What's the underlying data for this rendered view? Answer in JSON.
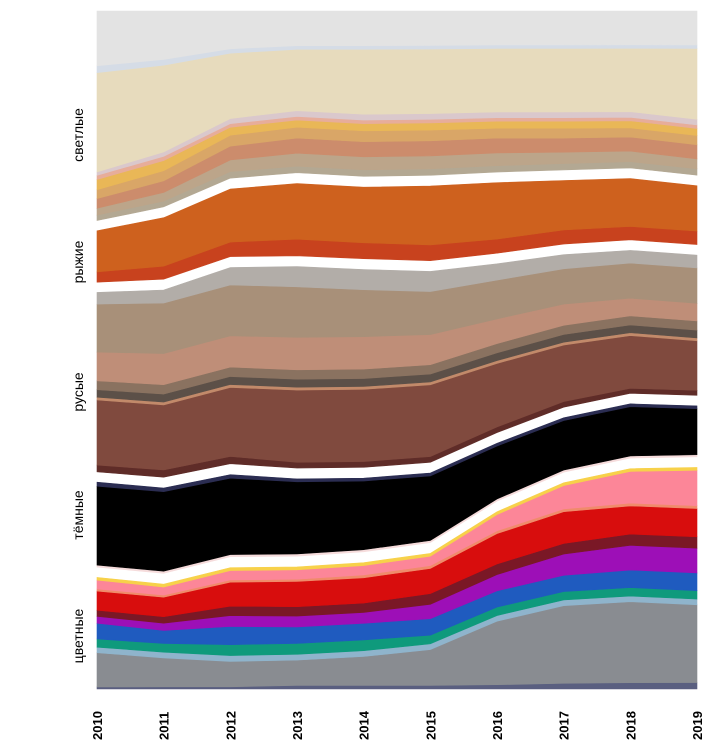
{
  "chart_data": {
    "type": "area",
    "subtype": "stacked-streamgraph",
    "title": "",
    "xlabel": "",
    "ylabel": "",
    "x": [
      "2010",
      "2011",
      "2012",
      "2013",
      "2014",
      "2015",
      "2016",
      "2017",
      "2018",
      "2019"
    ],
    "ylim": [
      0,
      100
    ],
    "grid": false,
    "legend": "none",
    "groups": [
      {
        "name": "цветные",
        "series": [
          {
            "color": "#5a5f80",
            "values": [
              0.3,
              0.3,
              0.3,
              0.5,
              0.5,
              0.5,
              0.6,
              0.8,
              0.9,
              0.9
            ]
          },
          {
            "color": "#898c91",
            "values": [
              5.0,
              4.0,
              3.5,
              3.5,
              4.0,
              5.0,
              9.0,
              11.0,
              11.5,
              11.0
            ]
          },
          {
            "color": "#8fb4cc",
            "values": [
              0.8,
              0.8,
              0.8,
              0.8,
              0.8,
              0.8,
              0.8,
              0.8,
              0.8,
              0.8
            ]
          },
          {
            "color": "#0f9a7c",
            "values": [
              1.2,
              1.2,
              1.5,
              1.5,
              1.5,
              1.2,
              1.2,
              1.2,
              1.2,
              1.2
            ]
          },
          {
            "color": "#1f5bbf",
            "values": [
              2.3,
              1.8,
              2.5,
              2.3,
              2.3,
              2.3,
              2.3,
              2.3,
              2.5,
              2.5
            ]
          },
          {
            "color": "#9d0fb7",
            "values": [
              1.0,
              1.0,
              1.5,
              1.5,
              1.5,
              2.0,
              2.3,
              3.0,
              3.5,
              3.5
            ]
          },
          {
            "color": "#7a1826",
            "values": [
              0.9,
              0.9,
              1.3,
              1.3,
              1.3,
              1.5,
              1.5,
              1.5,
              1.6,
              1.6
            ]
          },
          {
            "color": "#d80d0d",
            "values": [
              2.8,
              2.7,
              3.3,
              3.5,
              3.5,
              3.5,
              4.3,
              4.5,
              4.0,
              4.0
            ]
          },
          {
            "color": "#f08b6b",
            "values": [
              0.3,
              0.3,
              0.3,
              0.3,
              0.4,
              0.4,
              0.4,
              0.4,
              0.4,
              0.4
            ]
          },
          {
            "color": "#fc8698",
            "values": [
              1.3,
              1.1,
              1.3,
              1.3,
              1.3,
              1.3,
              2.3,
              3.3,
              4.5,
              5.0
            ]
          },
          {
            "color": "#f7d14a",
            "values": [
              0.4,
              0.4,
              0.4,
              0.4,
              0.4,
              0.4,
              0.4,
              0.4,
              0.4,
              0.4
            ]
          }
        ]
      },
      {
        "name": "тёмные",
        "series": [
          {
            "color": "#f6dcdc",
            "values": [
              0.3,
              0.3,
              0.3,
              0.3,
              0.3,
              0.3,
              0.3,
              0.3,
              0.3,
              0.3
            ]
          },
          {
            "color": "#000000",
            "values": [
              11.5,
              11.0,
              10.5,
              10.0,
              9.5,
              9.0,
              7.5,
              7.0,
              7.0,
              6.5
            ]
          },
          {
            "color": "#2b2d52",
            "values": [
              0.6,
              0.5,
              0.5,
              0.4,
              0.4,
              0.4,
              0.4,
              0.4,
              0.4,
              0.4
            ]
          }
        ]
      },
      {
        "name": "русые",
        "series": [
          {
            "color": "#5f2c28",
            "values": [
              1.0,
              1.0,
              1.0,
              0.8,
              0.8,
              0.8,
              0.8,
              0.8,
              0.7,
              0.7
            ]
          },
          {
            "color": "#804a3e",
            "values": [
              9.5,
              9.0,
              9.5,
              10.0,
              10.0,
              10.0,
              9.0,
              8.0,
              7.5,
              7.0
            ]
          },
          {
            "color": "#c28a6a",
            "values": [
              0.4,
              0.4,
              0.4,
              0.4,
              0.4,
              0.4,
              0.4,
              0.4,
              0.4,
              0.4
            ]
          },
          {
            "color": "#5c5048",
            "values": [
              1.1,
              1.1,
              1.1,
              1.1,
              1.1,
              1.1,
              1.1,
              1.1,
              1.1,
              1.1
            ]
          },
          {
            "color": "#8a7260",
            "values": [
              1.3,
              1.3,
              1.3,
              1.3,
              1.3,
              1.3,
              1.3,
              1.3,
              1.3,
              1.3
            ]
          },
          {
            "color": "#bf8e78",
            "values": [
              4.2,
              4.3,
              4.3,
              4.5,
              4.5,
              4.2,
              3.5,
              3.0,
              2.5,
              2.5
            ]
          },
          {
            "color": "#a89079",
            "values": [
              7.0,
              7.0,
              7.0,
              7.0,
              6.5,
              6.0,
              5.5,
              5.0,
              5.0,
              5.0
            ]
          },
          {
            "color": "#b2ada8",
            "values": [
              1.7,
              1.8,
              2.4,
              2.8,
              2.8,
              2.8,
              2.3,
              2.0,
              1.8,
              1.8
            ]
          }
        ]
      },
      {
        "name": "рыжие",
        "series": [
          {
            "color": "#c8421e",
            "values": [
              1.5,
              1.8,
              2.0,
              2.3,
              2.2,
              2.2,
              2.0,
              2.0,
              1.9,
              1.9
            ]
          },
          {
            "color": "#ce611e",
            "values": [
              6.0,
              6.7,
              7.3,
              7.7,
              7.7,
              8.2,
              8.0,
              7.0,
              6.8,
              6.4
            ]
          }
        ]
      },
      {
        "name": "светлые",
        "series": [
          {
            "color": "#b3a893",
            "values": [
              0.8,
              0.8,
              0.9,
              0.9,
              0.9,
              0.9,
              0.9,
              0.9,
              0.9,
              0.9
            ]
          },
          {
            "color": "#bca58a",
            "values": [
              1.0,
              1.2,
              1.6,
              1.8,
              1.8,
              1.8,
              1.8,
              1.6,
              1.5,
              1.4
            ]
          },
          {
            "color": "#cc8c6c",
            "values": [
              1.4,
              1.6,
              1.9,
              2.1,
              2.1,
              2.1,
              2.1,
              2.0,
              2.0,
              2.0
            ]
          },
          {
            "color": "#d9a667",
            "values": [
              1.3,
              1.4,
              1.5,
              1.5,
              1.5,
              1.5,
              1.4,
              1.4,
              1.3,
              1.3
            ]
          },
          {
            "color": "#e9b757",
            "values": [
              1.5,
              1.4,
              1.1,
              1.0,
              1.0,
              1.0,
              1.0,
              1.0,
              1.0,
              1.0
            ]
          },
          {
            "color": "#e7ad9a",
            "values": [
              0.6,
              0.6,
              0.5,
              0.5,
              0.5,
              0.5,
              0.5,
              0.5,
              0.5,
              0.5
            ]
          },
          {
            "color": "#dac8cc",
            "values": [
              0.5,
              0.6,
              0.7,
              0.8,
              0.8,
              0.8,
              0.8,
              0.8,
              0.8,
              0.8
            ]
          },
          {
            "color": "#e7dbbd",
            "values": [
              14.5,
              12.0,
              9.0,
              8.5,
              9.0,
              9.0,
              9.0,
              9.0,
              9.0,
              10.0
            ]
          },
          {
            "color": "#d5dce6",
            "values": [
              1.0,
              0.8,
              0.6,
              0.5,
              0.5,
              0.5,
              0.5,
              0.5,
              0.5,
              0.5
            ]
          },
          {
            "color": "#e3e3e3",
            "values": [
              8.0,
              6.7,
              5.2,
              4.8,
              4.8,
              4.8,
              4.8,
              4.8,
              4.8,
              4.8
            ]
          }
        ]
      }
    ]
  }
}
